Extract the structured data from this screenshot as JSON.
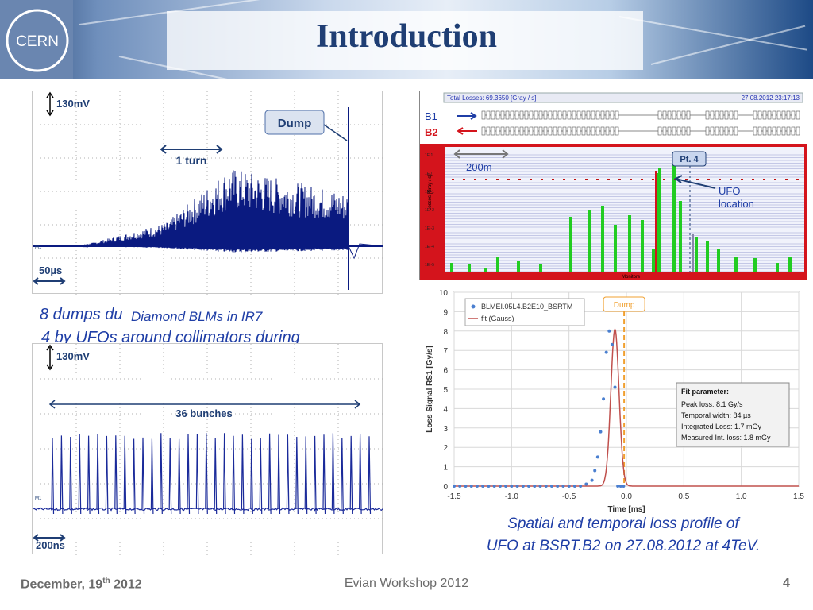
{
  "slide": {
    "title": "Introduction",
    "logo_text": "CERN"
  },
  "scope_top": {
    "scale_label": "130mV",
    "dump_label": "Dump",
    "turn_label": "1 turn",
    "time_label": "50µs",
    "marker": "M1"
  },
  "scope_bottom": {
    "scale_label": "130mV",
    "bunches_label": "36 bunches",
    "time_label": "200ns",
    "marker": "M1"
  },
  "overlap_text": {
    "line1": "8 dumps du",
    "line2": "Diamond BLMs in IR7",
    "line3": "4 by UFOs around collimators during"
  },
  "loss_display": {
    "header_left": "Total Losses: 69.3650 [Gray / s]",
    "header_right": "27.08.2012 23:17:13",
    "b1_label": "B1",
    "b2_label": "B2",
    "distance_label": "200m",
    "point_label": "Pt. 4",
    "ufo_label_1": "UFO",
    "ufo_label_2": "location",
    "y_axis_label": "Losses [Gray / s]",
    "x_axis_label": "Monitors",
    "y_ticks": [
      "1E 1",
      "1E0",
      "1E -1",
      "1E -2",
      "1E -3",
      "1E -4",
      "1E -5"
    ]
  },
  "chart_data": {
    "type": "scatter",
    "x": [
      -1.5,
      -1.45,
      -1.4,
      -1.35,
      -1.3,
      -1.25,
      -1.2,
      -1.15,
      -1.1,
      -1.05,
      -1.0,
      -0.95,
      -0.9,
      -0.85,
      -0.8,
      -0.75,
      -0.7,
      -0.65,
      -0.6,
      -0.55,
      -0.5,
      -0.45,
      -0.4,
      -0.35,
      -0.3,
      -0.275,
      -0.25,
      -0.225,
      -0.2,
      -0.175,
      -0.15,
      -0.125,
      -0.1,
      -0.075,
      -0.05,
      -0.025
    ],
    "series": [
      {
        "name": "BLMEI.05L4.B2E10_BSRTM",
        "values": [
          0,
          0,
          0,
          0,
          0,
          0,
          0,
          0,
          0,
          0,
          0,
          0,
          0,
          0,
          0,
          0,
          0,
          0,
          0,
          0,
          0,
          0,
          0,
          0.1,
          0.3,
          0.8,
          1.5,
          2.8,
          4.5,
          6.9,
          8.0,
          7.3,
          5.1,
          0,
          0,
          0
        ]
      },
      {
        "name": "fit (Gauss)",
        "peak_x": -0.1,
        "peak_y": 8.1,
        "sigma": 0.0357
      }
    ],
    "dump_x": -0.02,
    "dump_label": "Dump",
    "xlabel": "Time [ms]",
    "ylabel": "Loss Signal RS1 [Gy/s]",
    "xlim": [
      -1.5,
      1.5
    ],
    "ylim": [
      0,
      10
    ],
    "x_ticks": [
      "-1.5",
      "-1.0",
      "-0.5",
      "0.0",
      "0.5",
      "1.0",
      "1.5"
    ],
    "y_ticks": [
      "0",
      "1",
      "2",
      "3",
      "4",
      "5",
      "6",
      "7",
      "8",
      "9",
      "10"
    ],
    "grid": true,
    "legend_position": "top-left",
    "fit_box": {
      "title": "Fit parameter",
      "lines": [
        "Peak loss: 8.1 Gy/s",
        "Temporal width: 84 µs",
        "Integrated Loss: 1.7 mGy",
        "Measured Int. loss: 1.8 mGy"
      ]
    }
  },
  "caption": {
    "line1": "Spatial and temporal loss profile of",
    "line2": "UFO at BSRT.B2 on 27.08.2012 at 4TeV."
  },
  "footer": {
    "date_prefix": "December, 19",
    "date_sup": "th",
    "date_year": " 2012",
    "center": "Evian Workshop 2012",
    "page": "4"
  },
  "colors": {
    "title_blue": "#1f3e74",
    "scope_trace": "#0a1a80",
    "loss_red": "#d4141c",
    "bar_green": "#22cc22",
    "fit_red": "#c0504d",
    "dump_orange": "#f0a030"
  }
}
